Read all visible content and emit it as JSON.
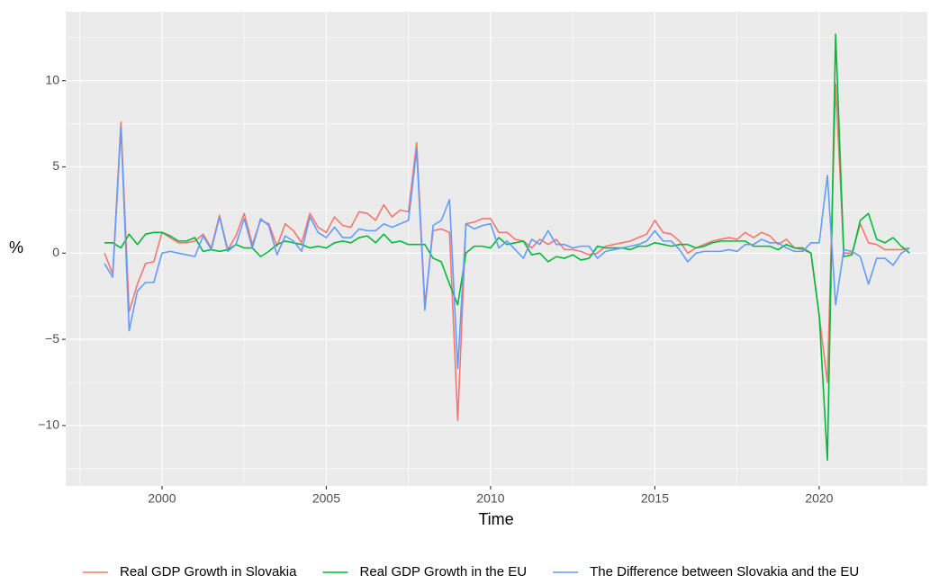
{
  "chart_data": {
    "type": "line",
    "x_label": "Time",
    "y_label": "%",
    "x": [
      1998.25,
      1998.5,
      1998.75,
      1999,
      1999.25,
      1999.5,
      1999.75,
      2000,
      2000.25,
      2000.5,
      2000.75,
      2001,
      2001.25,
      2001.5,
      2001.75,
      2002,
      2002.25,
      2002.5,
      2002.75,
      2003,
      2003.25,
      2003.5,
      2003.75,
      2004,
      2004.25,
      2004.5,
      2004.75,
      2005,
      2005.25,
      2005.5,
      2005.75,
      2006,
      2006.25,
      2006.5,
      2006.75,
      2007,
      2007.25,
      2007.5,
      2007.75,
      2008,
      2008.25,
      2008.5,
      2008.75,
      2009,
      2009.25,
      2009.5,
      2009.75,
      2010,
      2010.25,
      2010.5,
      2010.75,
      2011,
      2011.25,
      2011.5,
      2011.75,
      2012,
      2012.25,
      2012.5,
      2012.75,
      2013,
      2013.25,
      2013.5,
      2013.75,
      2014,
      2014.25,
      2014.5,
      2014.75,
      2015,
      2015.25,
      2015.5,
      2015.75,
      2016,
      2016.25,
      2016.5,
      2016.75,
      2017,
      2017.25,
      2017.5,
      2017.75,
      2018,
      2018.25,
      2018.5,
      2018.75,
      2019,
      2019.25,
      2019.5,
      2019.75,
      2020,
      2020.25,
      2020.5,
      2020.75,
      2021,
      2021.25,
      2021.5,
      2021.75,
      2022,
      2022.25,
      2022.5,
      2022.75
    ],
    "series": [
      {
        "name": "Real GDP Growth in Slovakia",
        "color": "#F8766D",
        "values": [
          0,
          -1.2,
          7.6,
          -3.4,
          -1.8,
          -0.6,
          -0.5,
          1.2,
          0.9,
          0.6,
          0.6,
          0.7,
          1.1,
          0.3,
          2.2,
          0.2,
          1.0,
          2.3,
          0.5,
          1.9,
          1.7,
          0.4,
          1.7,
          1.3,
          0.6,
          2.3,
          1.5,
          1.2,
          2.1,
          1.6,
          1.5,
          2.4,
          2.3,
          1.9,
          2.8,
          2.1,
          2.5,
          2.4,
          6.4,
          -3.0,
          1.3,
          1.4,
          1.2,
          -9.7,
          1.7,
          1.8,
          2.0,
          2.0,
          1.2,
          1.2,
          0.8,
          0.7,
          0.3,
          0.8,
          0.5,
          0.8,
          0.2,
          0.2,
          0.1,
          -0.1,
          0.0,
          0.4,
          0.5,
          0.6,
          0.7,
          0.9,
          1.1,
          1.9,
          1.2,
          1.1,
          0.7,
          0.0,
          0.3,
          0.5,
          0.7,
          0.8,
          0.9,
          0.8,
          1.2,
          0.9,
          1.2,
          1.0,
          0.5,
          0.8,
          0.3,
          0.2,
          0.0,
          -3.6,
          -7.5,
          9.8,
          0.0,
          0.0,
          1.7,
          0.6,
          0.5,
          0.2,
          0.2,
          0.2,
          0.3
        ]
      },
      {
        "name": "Real GDP Growth in the EU",
        "color": "#00BA38",
        "values": [
          0.6,
          0.6,
          0.3,
          1.1,
          0.5,
          1.1,
          1.2,
          1.2,
          1.0,
          0.7,
          0.7,
          0.9,
          0.1,
          0.2,
          0.1,
          0.2,
          0.5,
          0.3,
          0.3,
          -0.2,
          0.1,
          0.5,
          0.7,
          0.6,
          0.5,
          0.3,
          0.4,
          0.3,
          0.6,
          0.7,
          0.6,
          0.9,
          1.0,
          0.6,
          1.1,
          0.6,
          0.7,
          0.5,
          0.5,
          0.5,
          -0.3,
          -0.5,
          -1.8,
          -3.0,
          0.0,
          0.4,
          0.4,
          0.3,
          0.9,
          0.5,
          0.6,
          0.7,
          -0.1,
          0.0,
          -0.5,
          -0.2,
          -0.3,
          -0.1,
          -0.4,
          -0.3,
          0.4,
          0.3,
          0.3,
          0.3,
          0.2,
          0.4,
          0.4,
          0.6,
          0.5,
          0.4,
          0.5,
          0.5,
          0.3,
          0.4,
          0.6,
          0.7,
          0.7,
          0.7,
          0.7,
          0.4,
          0.4,
          0.4,
          0.2,
          0.5,
          0.3,
          0.3,
          0.0,
          -3.6,
          -12.0,
          12.7,
          -0.2,
          -0.1,
          1.9,
          2.3,
          0.8,
          0.6,
          0.9,
          0.4,
          0.0
        ]
      },
      {
        "name": "The Difference between Slovakia and the EU",
        "color": "#619CFF",
        "values": [
          -0.6,
          -1.4,
          7.3,
          -4.5,
          -2.2,
          -1.7,
          -1.7,
          0.0,
          0.1,
          0.0,
          -0.1,
          -0.2,
          1.0,
          0.2,
          2.1,
          0.1,
          0.5,
          2.0,
          0.3,
          2.0,
          1.6,
          -0.1,
          1.0,
          0.7,
          0.1,
          2.1,
          1.2,
          0.9,
          1.5,
          0.9,
          0.9,
          1.4,
          1.3,
          1.3,
          1.7,
          1.5,
          1.7,
          1.9,
          6.0,
          -3.3,
          1.6,
          1.9,
          3.1,
          -6.7,
          1.7,
          1.4,
          1.6,
          1.7,
          0.3,
          0.7,
          0.2,
          -0.3,
          0.8,
          0.5,
          1.3,
          0.5,
          0.5,
          0.3,
          0.4,
          0.4,
          -0.3,
          0.1,
          0.2,
          0.3,
          0.4,
          0.5,
          0.7,
          1.3,
          0.7,
          0.7,
          0.2,
          -0.5,
          0.0,
          0.1,
          0.1,
          0.1,
          0.2,
          0.1,
          0.5,
          0.5,
          0.8,
          0.6,
          0.6,
          0.3,
          0.1,
          0.1,
          0.6,
          0.6,
          4.5,
          -3.0,
          0.2,
          0.1,
          -0.2,
          -1.8,
          -0.3,
          -0.3,
          -0.7,
          0.0,
          0.3
        ]
      }
    ],
    "xlim": [
      1997.07,
      2023.29
    ],
    "ylim": [
      -13.5,
      14
    ],
    "xticks": [
      2000,
      2005,
      2010,
      2015,
      2020
    ],
    "yticks": [
      {
        "value": -10,
        "label": "−10"
      },
      {
        "value": -5,
        "label": "−5"
      },
      0,
      5,
      10
    ],
    "grid": true,
    "minor_grid": true,
    "legend": "bottom"
  }
}
